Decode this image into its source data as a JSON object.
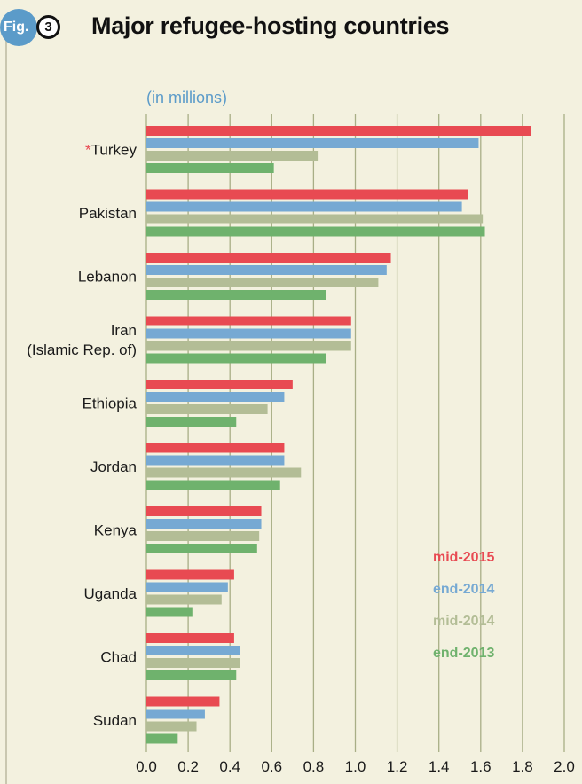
{
  "figure": {
    "badge": "Fig.",
    "number": "3"
  },
  "title": "Major refugee-hosting countries",
  "colors": {
    "mid-2015": "#e84a52",
    "end-2014": "#76a9d3",
    "mid-2014": "#b3bd96",
    "end-2013": "#6fb26d",
    "grid": "#a8ae86",
    "asterisk": "#e84a52"
  },
  "chart_data": {
    "type": "bar",
    "orientation": "horizontal",
    "title": "Major refugee-hosting countries",
    "ylabel": "(in millions)",
    "xlim": [
      0,
      2.0
    ],
    "xticks": [
      "0.0",
      "0.2",
      "0.4",
      "0.6",
      "0.8",
      "1.0",
      "1.2",
      "1.4",
      "1.6",
      "1.8",
      "2.0"
    ],
    "grid": true,
    "legend_position": "right",
    "categories": [
      {
        "marker": "*",
        "lines": [
          "Turkey"
        ]
      },
      {
        "marker": "",
        "lines": [
          "Pakistan"
        ]
      },
      {
        "marker": "",
        "lines": [
          "Lebanon"
        ]
      },
      {
        "marker": "",
        "lines": [
          "Iran",
          "(Islamic Rep. of)"
        ]
      },
      {
        "marker": "",
        "lines": [
          "Ethiopia"
        ]
      },
      {
        "marker": "",
        "lines": [
          "Jordan"
        ]
      },
      {
        "marker": "",
        "lines": [
          "Kenya"
        ]
      },
      {
        "marker": "",
        "lines": [
          "Uganda"
        ]
      },
      {
        "marker": "",
        "lines": [
          "Chad"
        ]
      },
      {
        "marker": "",
        "lines": [
          "Sudan"
        ]
      }
    ],
    "series": [
      {
        "name": "mid-2015",
        "values": [
          1.84,
          1.54,
          1.17,
          0.98,
          0.7,
          0.66,
          0.55,
          0.42,
          0.42,
          0.35
        ]
      },
      {
        "name": "end-2014",
        "values": [
          1.59,
          1.51,
          1.15,
          0.98,
          0.66,
          0.66,
          0.55,
          0.39,
          0.45,
          0.28
        ]
      },
      {
        "name": "mid-2014",
        "values": [
          0.82,
          1.61,
          1.11,
          0.98,
          0.58,
          0.74,
          0.54,
          0.36,
          0.45,
          0.24
        ]
      },
      {
        "name": "end-2013",
        "values": [
          0.61,
          1.62,
          0.86,
          0.86,
          0.43,
          0.64,
          0.53,
          0.22,
          0.43,
          0.15
        ]
      }
    ]
  }
}
